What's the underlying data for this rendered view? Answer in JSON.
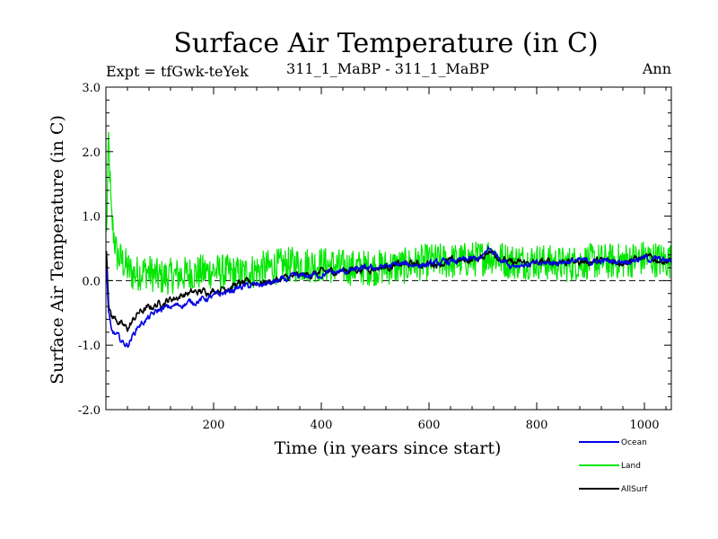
{
  "chart_data": {
    "type": "line",
    "title": "Surface Air Temperature (in C)",
    "subtitle_left": "Expt = tfGwk-teYek",
    "subtitle_center": "311_1_MaBP - 311_1_MaBP",
    "subtitle_right": "Ann",
    "xlabel": "Time (in years since start)",
    "ylabel": "Surface Air Temperature (in C)",
    "xlim": [
      0,
      1050
    ],
    "ylim": [
      -2.0,
      3.0
    ],
    "xticks": [
      200,
      400,
      600,
      800,
      1000
    ],
    "xtick_labels": [
      "200",
      "400",
      "600",
      "800",
      "1000"
    ],
    "yticks": [
      -2.0,
      -1.0,
      0.0,
      1.0,
      2.0,
      3.0
    ],
    "ytick_labels": [
      "-2.0",
      "-1.0",
      "0.0",
      "1.0",
      "2.0",
      "3.0"
    ],
    "reference_line": 0.0,
    "series": [
      {
        "name": "Land",
        "color": "#00e600",
        "x": [
          0,
          5,
          10,
          20,
          30,
          50,
          75,
          100,
          150,
          200,
          250,
          300,
          350,
          400,
          450,
          500,
          550,
          600,
          650,
          700,
          710,
          750,
          800,
          850,
          900,
          950,
          1000,
          1050
        ],
        "values": [
          0.3,
          2.2,
          1.0,
          0.4,
          0.3,
          0.1,
          0.15,
          0.05,
          0.1,
          0.15,
          0.1,
          0.2,
          0.25,
          0.25,
          0.2,
          0.2,
          0.22,
          0.3,
          0.3,
          0.35,
          0.4,
          0.3,
          0.3,
          0.25,
          0.3,
          0.3,
          0.35,
          0.3
        ]
      },
      {
        "name": "Ocean",
        "color": "#0000e6",
        "x": [
          0,
          5,
          10,
          20,
          30,
          40,
          60,
          100,
          150,
          200,
          250,
          300,
          350,
          400,
          450,
          500,
          550,
          600,
          650,
          700,
          710,
          750,
          800,
          850,
          900,
          950,
          1000,
          1050
        ],
        "values": [
          0.4,
          -0.5,
          -0.8,
          -0.85,
          -0.95,
          -1.0,
          -0.7,
          -0.45,
          -0.35,
          -0.25,
          -0.1,
          -0.05,
          0.05,
          0.1,
          0.15,
          0.2,
          0.25,
          0.25,
          0.3,
          0.35,
          0.5,
          0.25,
          0.25,
          0.3,
          0.3,
          0.3,
          0.35,
          0.3
        ]
      },
      {
        "name": "AllSurf",
        "color": "#000000",
        "x": [
          0,
          5,
          10,
          20,
          30,
          40,
          60,
          100,
          150,
          200,
          250,
          300,
          350,
          400,
          450,
          500,
          550,
          600,
          650,
          700,
          710,
          750,
          800,
          850,
          900,
          950,
          1000,
          1050
        ],
        "values": [
          0.7,
          -0.3,
          -0.55,
          -0.6,
          -0.7,
          -0.75,
          -0.5,
          -0.35,
          -0.2,
          -0.15,
          -0.05,
          -0.02,
          0.06,
          0.12,
          0.17,
          0.2,
          0.25,
          0.26,
          0.3,
          0.35,
          0.48,
          0.27,
          0.27,
          0.3,
          0.3,
          0.3,
          0.35,
          0.3
        ]
      }
    ],
    "legend_order": [
      "Ocean",
      "Land",
      "AllSurf"
    ],
    "legend_position": "bottom-right"
  }
}
